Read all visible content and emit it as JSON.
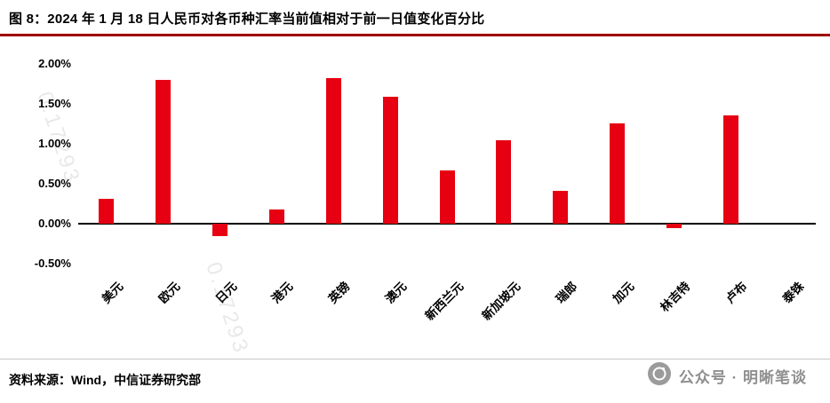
{
  "header": {
    "title": "图 8：2024 年 1 月 18 日人民币对各币种汇率当前值相对于前一日值变化百分比"
  },
  "footer": {
    "source": "资料来源：Wind，中信证券研究部",
    "badge_text": "公众号 · 明晰笔谈",
    "badge_icon": "camera-lens-circle-icon"
  },
  "watermark": {
    "text": "0.17293"
  },
  "colors": {
    "bar": "#e60012",
    "title_rule": "#9e0000",
    "axis": "#000000",
    "badge_gray": "#8f8f8f"
  },
  "chart_data": {
    "type": "bar",
    "title": "2024 年 1 月 18 日人民币对各币种汇率当前值相对于前一日值变化百分比",
    "categories": [
      "美元",
      "欧元",
      "日元",
      "港元",
      "英镑",
      "澳元",
      "新西兰元",
      "新加坡元",
      "瑞郎",
      "加元",
      "林吉特",
      "卢布",
      "泰铢"
    ],
    "values": [
      0.31,
      1.8,
      -0.15,
      0.18,
      1.82,
      1.59,
      0.67,
      1.04,
      0.41,
      1.26,
      -0.06,
      1.36,
      0.0
    ],
    "xlabel": "",
    "ylabel": "",
    "ylim": [
      -0.5,
      2.0
    ],
    "yticks": [
      2.0,
      1.5,
      1.0,
      0.5,
      0.0,
      -0.5
    ],
    "ytick_labels": [
      "2.00%",
      "1.50%",
      "1.00%",
      "0.50%",
      "0.00%",
      "-0.50%"
    ],
    "grid": false,
    "legend": "none",
    "bar_color": "#e60012"
  }
}
